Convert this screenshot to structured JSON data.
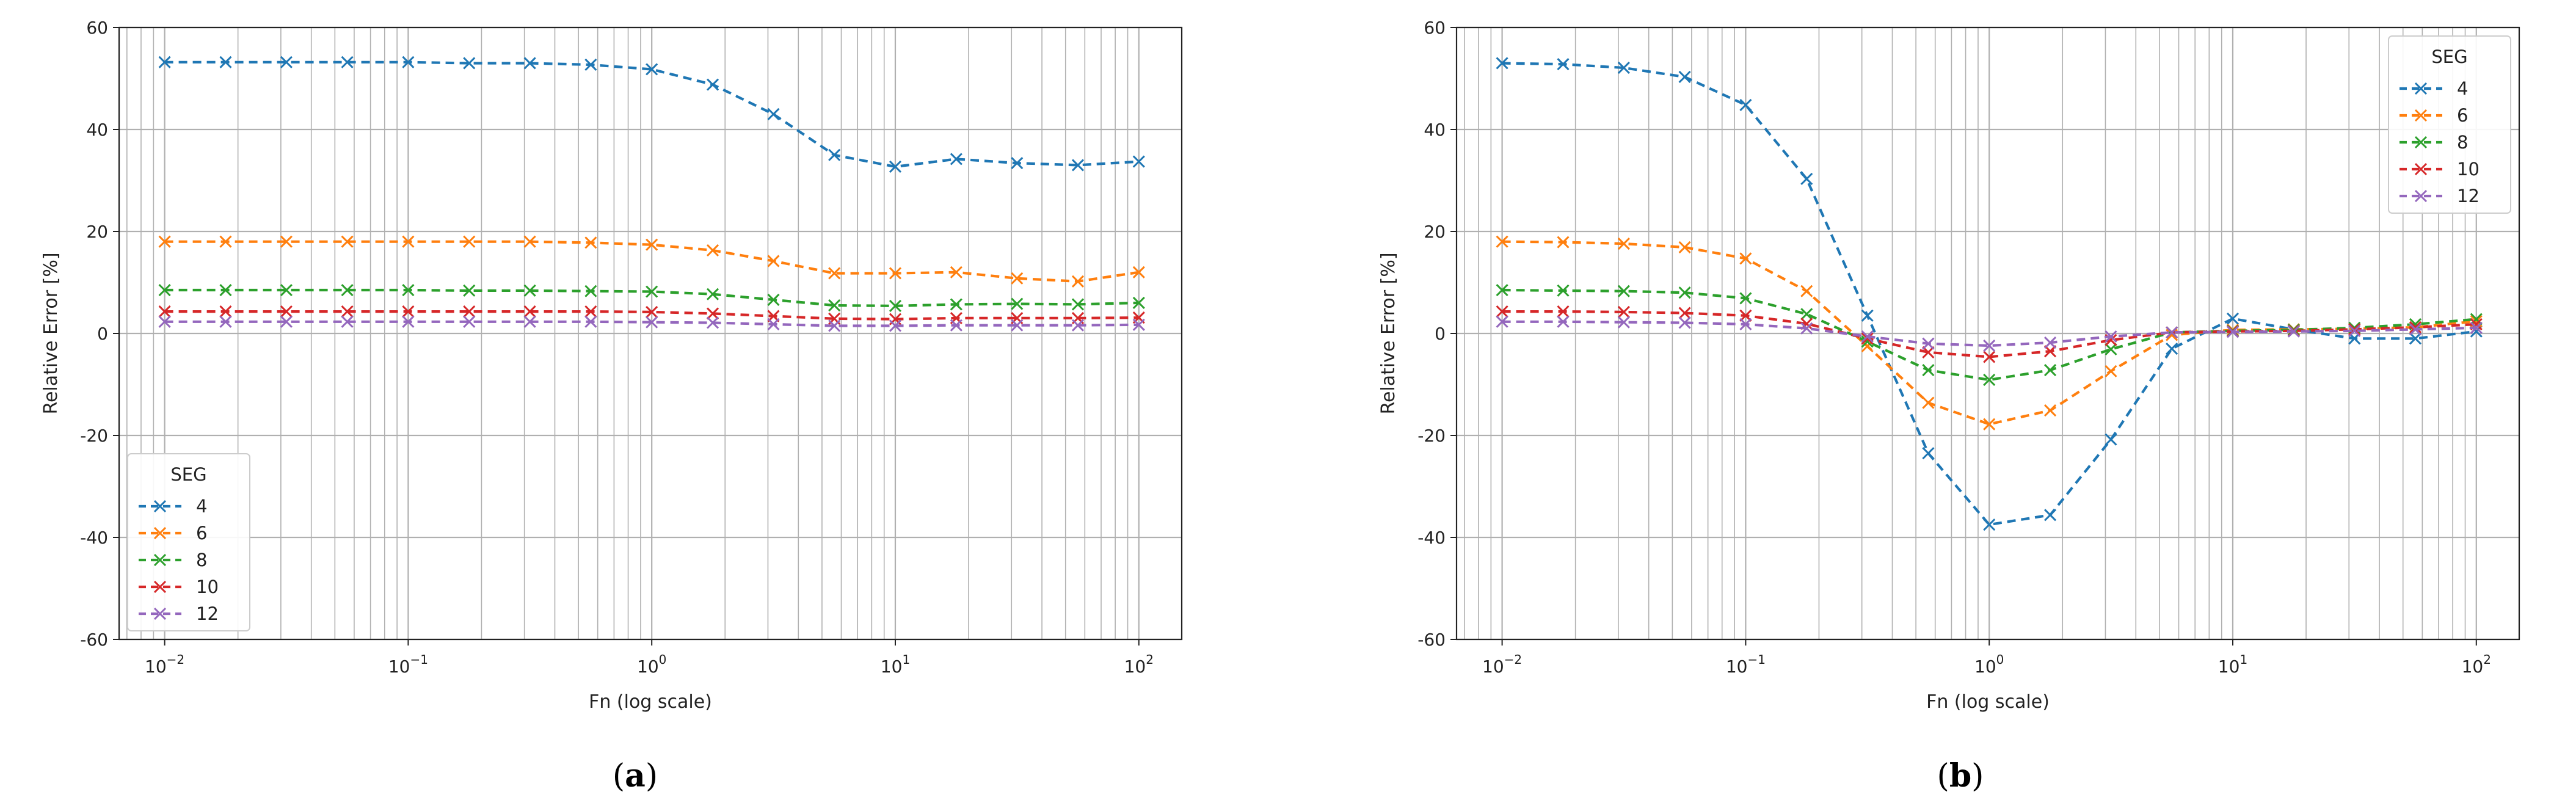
{
  "chart_data": [
    {
      "type": "line",
      "panel_label": "(a)",
      "panel_letter": "a",
      "xlabel": "Fn (log scale)",
      "ylabel": "Relative Error [%]",
      "xscale": "log",
      "xlim": [
        0.0065,
        150
      ],
      "ylim": [
        -60,
        60
      ],
      "yticks": [
        -60,
        -40,
        -20,
        0,
        20,
        40,
        60
      ],
      "xticks": [
        {
          "mant": "10",
          "exp": "−2"
        },
        {
          "mant": "10",
          "exp": "−1"
        },
        {
          "mant": "10",
          "exp": "0"
        },
        {
          "mant": "10",
          "exp": "1"
        },
        {
          "mant": "10",
          "exp": "2"
        }
      ],
      "grid": true,
      "legend": {
        "title": "SEG",
        "location": "lower-left"
      },
      "x": [
        0.01,
        0.0178,
        0.0316,
        0.0562,
        0.1,
        0.178,
        0.316,
        0.562,
        1,
        1.78,
        3.16,
        5.62,
        10,
        17.8,
        31.6,
        56.2,
        100
      ],
      "series": [
        {
          "name": "4",
          "color": "#1f77b4",
          "values": [
            53.2,
            53.2,
            53.2,
            53.2,
            53.2,
            53.0,
            53.0,
            52.7,
            51.8,
            48.8,
            43.0,
            35.0,
            32.7,
            34.2,
            33.4,
            33.0,
            33.7
          ]
        },
        {
          "name": "6",
          "color": "#ff7f0e",
          "values": [
            18.0,
            18.0,
            18.0,
            18.0,
            18.0,
            18.0,
            18.0,
            17.8,
            17.4,
            16.3,
            14.2,
            11.8,
            11.8,
            12.0,
            10.8,
            10.2,
            12.0
          ]
        },
        {
          "name": "8",
          "color": "#2ca02c",
          "values": [
            8.5,
            8.5,
            8.5,
            8.5,
            8.5,
            8.4,
            8.4,
            8.3,
            8.2,
            7.7,
            6.6,
            5.5,
            5.4,
            5.7,
            5.8,
            5.7,
            6.0
          ]
        },
        {
          "name": "10",
          "color": "#d62728",
          "values": [
            4.3,
            4.3,
            4.3,
            4.3,
            4.3,
            4.3,
            4.3,
            4.3,
            4.2,
            3.9,
            3.4,
            2.9,
            2.8,
            3.0,
            3.0,
            3.0,
            3.1
          ]
        },
        {
          "name": "12",
          "color": "#9467bd",
          "values": [
            2.3,
            2.3,
            2.3,
            2.3,
            2.3,
            2.3,
            2.3,
            2.3,
            2.2,
            2.1,
            1.8,
            1.5,
            1.5,
            1.6,
            1.6,
            1.6,
            1.7
          ]
        }
      ]
    },
    {
      "type": "line",
      "panel_label": "(b)",
      "panel_letter": "b",
      "xlabel": "Fn (log scale)",
      "ylabel": "Relative Error [%]",
      "xscale": "log",
      "xlim": [
        0.0065,
        150
      ],
      "ylim": [
        -60,
        60
      ],
      "yticks": [
        -60,
        -40,
        -20,
        0,
        20,
        40,
        60
      ],
      "xticks": [
        {
          "mant": "10",
          "exp": "−2"
        },
        {
          "mant": "10",
          "exp": "−1"
        },
        {
          "mant": "10",
          "exp": "0"
        },
        {
          "mant": "10",
          "exp": "1"
        },
        {
          "mant": "10",
          "exp": "2"
        }
      ],
      "grid": true,
      "legend": {
        "title": "SEG",
        "location": "upper-right"
      },
      "x": [
        0.01,
        0.0178,
        0.0316,
        0.0562,
        0.1,
        0.178,
        0.316,
        0.562,
        1,
        1.78,
        3.16,
        5.62,
        10,
        17.8,
        31.6,
        56.2,
        100
      ],
      "series": [
        {
          "name": "4",
          "color": "#1f77b4",
          "values": [
            53.0,
            52.8,
            52.1,
            50.3,
            44.8,
            30.3,
            3.5,
            -23.5,
            -37.5,
            -35.6,
            -20.8,
            -3.0,
            2.9,
            0.8,
            -1.0,
            -1.0,
            0.4
          ]
        },
        {
          "name": "6",
          "color": "#ff7f0e",
          "values": [
            18.0,
            17.9,
            17.6,
            16.9,
            14.7,
            8.3,
            -2.5,
            -13.6,
            -17.8,
            -15.1,
            -7.4,
            -0.3,
            0.7,
            0.8,
            0.9,
            1.2,
            2.4
          ]
        },
        {
          "name": "8",
          "color": "#2ca02c",
          "values": [
            8.5,
            8.4,
            8.3,
            8.0,
            6.9,
            3.8,
            -1.6,
            -7.2,
            -9.1,
            -7.2,
            -3.1,
            0.2,
            0.5,
            0.7,
            1.1,
            1.8,
            2.8
          ]
        },
        {
          "name": "10",
          "color": "#d62728",
          "values": [
            4.3,
            4.3,
            4.2,
            4.0,
            3.5,
            1.9,
            -1.0,
            -3.7,
            -4.6,
            -3.5,
            -1.3,
            0.2,
            0.4,
            0.5,
            0.8,
            1.2,
            1.8
          ]
        },
        {
          "name": "12",
          "color": "#9467bd",
          "values": [
            2.3,
            2.3,
            2.2,
            2.1,
            1.8,
            1.0,
            -0.6,
            -2.0,
            -2.4,
            -1.8,
            -0.6,
            0.2,
            0.3,
            0.4,
            0.5,
            0.8,
            1.1
          ]
        }
      ]
    }
  ]
}
